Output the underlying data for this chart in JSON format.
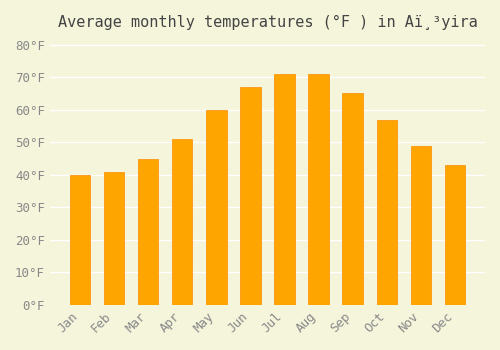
{
  "title": "Average monthly temperatures (°F ) in Aï¸³yira",
  "months": [
    "Jan",
    "Feb",
    "Mar",
    "Apr",
    "May",
    "Jun",
    "Jul",
    "Aug",
    "Sep",
    "Oct",
    "Nov",
    "Dec"
  ],
  "values": [
    40,
    41,
    45,
    51,
    60,
    67,
    71,
    71,
    65,
    57,
    49,
    43
  ],
  "bar_color": "#FFA500",
  "bar_edge_color": "#FF8C00",
  "background_color": "#F5F5DC",
  "grid_color": "#FFFFFF",
  "ylim": [
    0,
    82
  ],
  "yticks": [
    0,
    10,
    20,
    30,
    40,
    50,
    60,
    70,
    80
  ],
  "title_fontsize": 11,
  "tick_fontsize": 9,
  "font_family": "monospace"
}
